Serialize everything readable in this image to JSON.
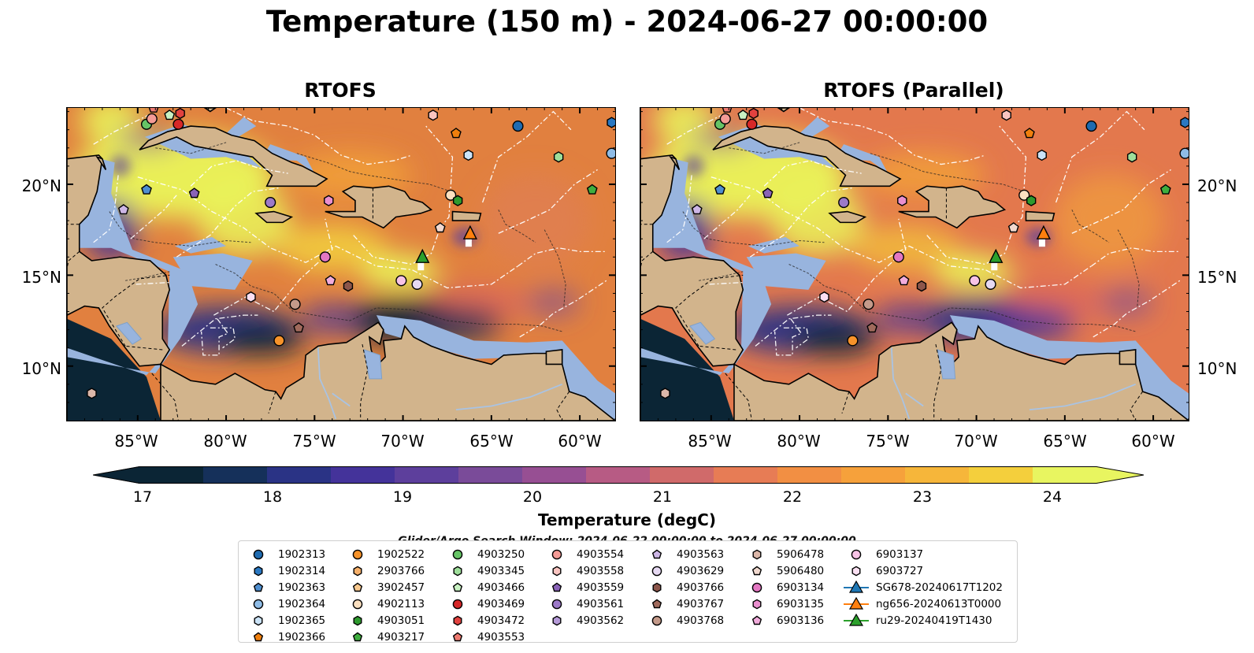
{
  "title": "Temperature (150 m) - 2024-06-27 00:00:00",
  "panels": [
    {
      "title": "RTOFS",
      "variant": "left"
    },
    {
      "title": "RTOFS (Parallel)",
      "variant": "right"
    }
  ],
  "axes": {
    "lat_ticks": [
      "20°N",
      "15°N",
      "10°N"
    ],
    "lon_ticks": [
      "85°W",
      "80°W",
      "75°W",
      "70°W",
      "65°W",
      "60°W"
    ],
    "lat_range": [
      7,
      24.2
    ],
    "lon_range": [
      -89,
      -58
    ]
  },
  "colorbar": {
    "label": "Temperature (degC)",
    "ticks": [
      "17",
      "18",
      "19",
      "20",
      "21",
      "22",
      "23",
      "24"
    ],
    "range": [
      17,
      24.5
    ],
    "colormap": [
      "#0b2535",
      "#15305a",
      "#2a3385",
      "#44339a",
      "#5d3f9c",
      "#7a4b99",
      "#974f93",
      "#b75b84",
      "#d06a6a",
      "#e77c55",
      "#f28f43",
      "#f6a13b",
      "#f6b63a",
      "#f4cf3c",
      "#e8f560"
    ]
  },
  "search_window": "Glider/Argo Search Window: 2024-06-22 00:00:00 to 2024-06-27 00:00:00",
  "legend": {
    "columns": [
      [
        {
          "label": "1902313",
          "marker": "circle",
          "color": "#1f6bb0"
        },
        {
          "label": "1902314",
          "marker": "hexagon",
          "color": "#2a78c2"
        },
        {
          "label": "1902363",
          "marker": "pentagon",
          "color": "#4f8fd0"
        },
        {
          "label": "1902364",
          "marker": "circle",
          "color": "#8fbce6"
        },
        {
          "label": "1902365",
          "marker": "hexagon",
          "color": "#cbe3f7"
        },
        {
          "label": "1902366",
          "marker": "pentagon",
          "color": "#f07f0d"
        }
      ],
      [
        {
          "label": "1902522",
          "marker": "circle",
          "color": "#f7932a"
        },
        {
          "label": "2903766",
          "marker": "hexagon",
          "color": "#f7b06a"
        },
        {
          "label": "3902457",
          "marker": "pentagon",
          "color": "#f9c98f"
        },
        {
          "label": "4902113",
          "marker": "circle",
          "color": "#fbe0c0"
        },
        {
          "label": "4903051",
          "marker": "hexagon",
          "color": "#2e9a2e"
        },
        {
          "label": "4903217",
          "marker": "pentagon",
          "color": "#3fae3f"
        }
      ],
      [
        {
          "label": "4903250",
          "marker": "circle",
          "color": "#66c466"
        },
        {
          "label": "4903345",
          "marker": "hexagon",
          "color": "#9ede9a"
        },
        {
          "label": "4903466",
          "marker": "pentagon",
          "color": "#c9f2c3"
        },
        {
          "label": "4903469",
          "marker": "circle",
          "color": "#d62728"
        },
        {
          "label": "4903472",
          "marker": "hexagon",
          "color": "#e2423f"
        },
        {
          "label": "4903553",
          "marker": "pentagon",
          "color": "#ee7a70"
        }
      ],
      [
        {
          "label": "4903554",
          "marker": "circle",
          "color": "#f49b96"
        },
        {
          "label": "4903558",
          "marker": "hexagon",
          "color": "#f9c4c0"
        },
        {
          "label": "4903559",
          "marker": "pentagon",
          "color": "#8a63b8"
        },
        {
          "label": "4903561",
          "marker": "circle",
          "color": "#9c79c8"
        },
        {
          "label": "4903562",
          "marker": "hexagon",
          "color": "#b59ad8"
        }
      ],
      [
        {
          "label": "4903563",
          "marker": "pentagon",
          "color": "#cdb6e6"
        },
        {
          "label": "4903629",
          "marker": "circle",
          "color": "#e6d9f2"
        },
        {
          "label": "4903766",
          "marker": "hexagon",
          "color": "#8c564b"
        },
        {
          "label": "4903767",
          "marker": "pentagon",
          "color": "#a06a5c"
        },
        {
          "label": "4903768",
          "marker": "circle",
          "color": "#c49a8a"
        }
      ],
      [
        {
          "label": "5906478",
          "marker": "hexagon",
          "color": "#dcb7a9"
        },
        {
          "label": "5906480",
          "marker": "pentagon",
          "color": "#f1d9cf"
        },
        {
          "label": "6903134",
          "marker": "circle",
          "color": "#e377c2"
        },
        {
          "label": "6903135",
          "marker": "hexagon",
          "color": "#ea8fcf"
        },
        {
          "label": "6903136",
          "marker": "pentagon",
          "color": "#f2acdc"
        }
      ],
      [
        {
          "label": "6903137",
          "marker": "circle",
          "color": "#f7c3e6"
        },
        {
          "label": "6903727",
          "marker": "hexagon",
          "color": "#fbe0f2"
        },
        {
          "label": "SG678-20240617T1202",
          "marker": "triangle-line",
          "color": "#1f77b4"
        },
        {
          "label": "ng656-20240613T0000",
          "marker": "triangle-line",
          "color": "#ff7f0e"
        },
        {
          "label": "ru29-20240419T1430",
          "marker": "triangle-line",
          "color": "#2ca02c"
        }
      ]
    ]
  },
  "floats": [
    {
      "id": "1902313",
      "lon": -63.5,
      "lat": 23.2
    },
    {
      "id": "1902314",
      "lon": -58.2,
      "lat": 23.4
    },
    {
      "id": "1902363",
      "lon": -84.5,
      "lat": 19.7
    },
    {
      "id": "1902364",
      "lon": -58.2,
      "lat": 21.7
    },
    {
      "id": "1902365",
      "lon": -66.3,
      "lat": 21.6
    },
    {
      "id": "1902366",
      "lon": -67.0,
      "lat": 22.8
    },
    {
      "id": "1902522",
      "lon": -77.0,
      "lat": 11.4
    },
    {
      "id": "4902113",
      "lon": -67.3,
      "lat": 19.4
    },
    {
      "id": "4903051",
      "lon": -66.9,
      "lat": 19.1
    },
    {
      "id": "4903217",
      "lon": -59.3,
      "lat": 19.7
    },
    {
      "id": "4903250",
      "lon": -84.5,
      "lat": 23.3
    },
    {
      "id": "4903345",
      "lon": -61.2,
      "lat": 21.5
    },
    {
      "id": "4903466",
      "lon": -83.2,
      "lat": 23.8
    },
    {
      "id": "4903469",
      "lon": -82.7,
      "lat": 23.3
    },
    {
      "id": "4903472",
      "lon": -82.6,
      "lat": 23.9
    },
    {
      "id": "4903553",
      "lon": -84.1,
      "lat": 24.2
    },
    {
      "id": "4903554",
      "lon": -84.2,
      "lat": 23.6
    },
    {
      "id": "4903558",
      "lon": -68.3,
      "lat": 23.8
    },
    {
      "id": "4903559",
      "lon": -81.8,
      "lat": 19.5
    },
    {
      "id": "4903561",
      "lon": -77.5,
      "lat": 19.0
    },
    {
      "id": "4903563",
      "lon": -85.8,
      "lat": 18.6
    },
    {
      "id": "4903629",
      "lon": -69.2,
      "lat": 14.5
    },
    {
      "id": "4903766",
      "lon": -73.1,
      "lat": 14.4
    },
    {
      "id": "4903767",
      "lon": -75.9,
      "lat": 12.1
    },
    {
      "id": "4903768",
      "lon": -76.1,
      "lat": 13.4
    },
    {
      "id": "5906478",
      "lon": -87.6,
      "lat": 8.5
    },
    {
      "id": "5906480",
      "lon": -67.9,
      "lat": 17.6
    },
    {
      "id": "6903134",
      "lon": -74.4,
      "lat": 16.0
    },
    {
      "id": "6903135",
      "lon": -74.2,
      "lat": 19.1
    },
    {
      "id": "6903136",
      "lon": -74.1,
      "lat": 14.7
    },
    {
      "id": "6903137",
      "lon": -70.1,
      "lat": 14.7
    },
    {
      "id": "6903727",
      "lon": -78.6,
      "lat": 13.8
    }
  ],
  "gliders": [
    {
      "id": "ng656-20240613T0000",
      "lon": -66.2,
      "lat": 17.3
    },
    {
      "id": "ru29-20240419T1430",
      "lon": -68.9,
      "lat": 16.0
    }
  ]
}
